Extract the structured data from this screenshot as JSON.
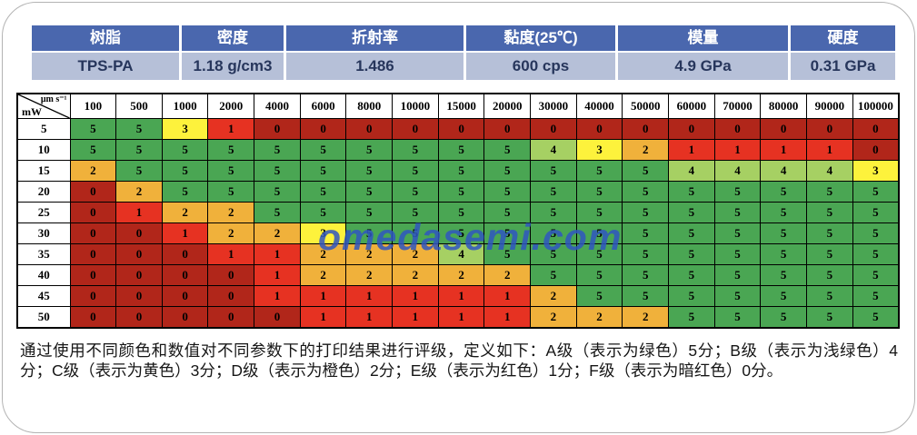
{
  "colors": {
    "header_blue": "#4a67ae",
    "value_row_blue": "#b6c0d8",
    "value_text_navy": "#27365c",
    "watermark_blue": "#2f56c1",
    "grid_line": "#000000"
  },
  "property_table": {
    "columns": [
      {
        "label": "树脂",
        "value": "TPS-PA"
      },
      {
        "label": "密度",
        "value": "1.18 g/cm3"
      },
      {
        "label": "折射率",
        "value": "1.486"
      },
      {
        "label": "黏度(25℃)",
        "value": "600 cps"
      },
      {
        "label": "模量",
        "value": "4.9 GPa"
      },
      {
        "label": "硬度",
        "value": "0.31 GPa"
      }
    ]
  },
  "chart_data": {
    "type": "heatmap",
    "x_axis_label": "μm s⁻¹",
    "y_axis_label": "mW",
    "x_categories": [
      "100",
      "500",
      "1000",
      "2000",
      "4000",
      "6000",
      "8000",
      "10000",
      "15000",
      "20000",
      "30000",
      "40000",
      "50000",
      "60000",
      "70000",
      "80000",
      "90000",
      "100000"
    ],
    "y_categories": [
      "5",
      "10",
      "15",
      "20",
      "25",
      "30",
      "35",
      "40",
      "45",
      "50"
    ],
    "values": [
      [
        5,
        5,
        3,
        1,
        0,
        0,
        0,
        0,
        0,
        0,
        0,
        0,
        0,
        0,
        0,
        0,
        0,
        0
      ],
      [
        5,
        5,
        5,
        5,
        5,
        5,
        5,
        5,
        5,
        5,
        4,
        3,
        2,
        1,
        1,
        1,
        1,
        0
      ],
      [
        2,
        5,
        5,
        5,
        5,
        5,
        5,
        5,
        5,
        5,
        5,
        5,
        5,
        4,
        4,
        4,
        4,
        3
      ],
      [
        0,
        2,
        5,
        5,
        5,
        5,
        5,
        5,
        5,
        5,
        5,
        5,
        5,
        5,
        5,
        5,
        5,
        5
      ],
      [
        0,
        1,
        2,
        2,
        5,
        5,
        5,
        5,
        5,
        5,
        5,
        5,
        5,
        5,
        5,
        5,
        5,
        5
      ],
      [
        0,
        0,
        1,
        2,
        2,
        3,
        5,
        5,
        5,
        5,
        5,
        5,
        5,
        5,
        5,
        5,
        5,
        5
      ],
      [
        0,
        0,
        0,
        1,
        1,
        2,
        2,
        2,
        4,
        5,
        5,
        5,
        5,
        5,
        5,
        5,
        5,
        5
      ],
      [
        0,
        0,
        0,
        0,
        1,
        2,
        2,
        2,
        2,
        2,
        5,
        5,
        5,
        5,
        5,
        5,
        5,
        5
      ],
      [
        0,
        0,
        0,
        0,
        1,
        1,
        1,
        1,
        1,
        1,
        2,
        5,
        5,
        5,
        5,
        5,
        5,
        5
      ],
      [
        0,
        0,
        0,
        0,
        0,
        1,
        1,
        1,
        1,
        1,
        2,
        2,
        2,
        5,
        5,
        5,
        5,
        5
      ]
    ],
    "color_scale": {
      "5": "#4aa653",
      "4": "#a6d063",
      "3": "#fdf23c",
      "2": "#f0b13b",
      "1": "#e63222",
      "0": "#b1261a"
    },
    "grade_legend": [
      {
        "grade": "A",
        "color_name": "绿色",
        "score": 5
      },
      {
        "grade": "B",
        "color_name": "浅绿色",
        "score": 4
      },
      {
        "grade": "C",
        "color_name": "黄色",
        "score": 3
      },
      {
        "grade": "D",
        "color_name": "橙色",
        "score": 2
      },
      {
        "grade": "E",
        "color_name": "红色",
        "score": 1
      },
      {
        "grade": "F",
        "color_name": "暗红色",
        "score": 0
      }
    ]
  },
  "watermark": "omedasemi.com",
  "caption": "通过使用不同颜色和数值对不同参数下的打印结果进行评级，定义如下：A级（表示为绿色）5分；B级（表示为浅绿色）4分；C级（表示为黄色）3分；D级（表示为橙色）2分；E级（表示为红色）1分；F级（表示为暗红色）0分。"
}
